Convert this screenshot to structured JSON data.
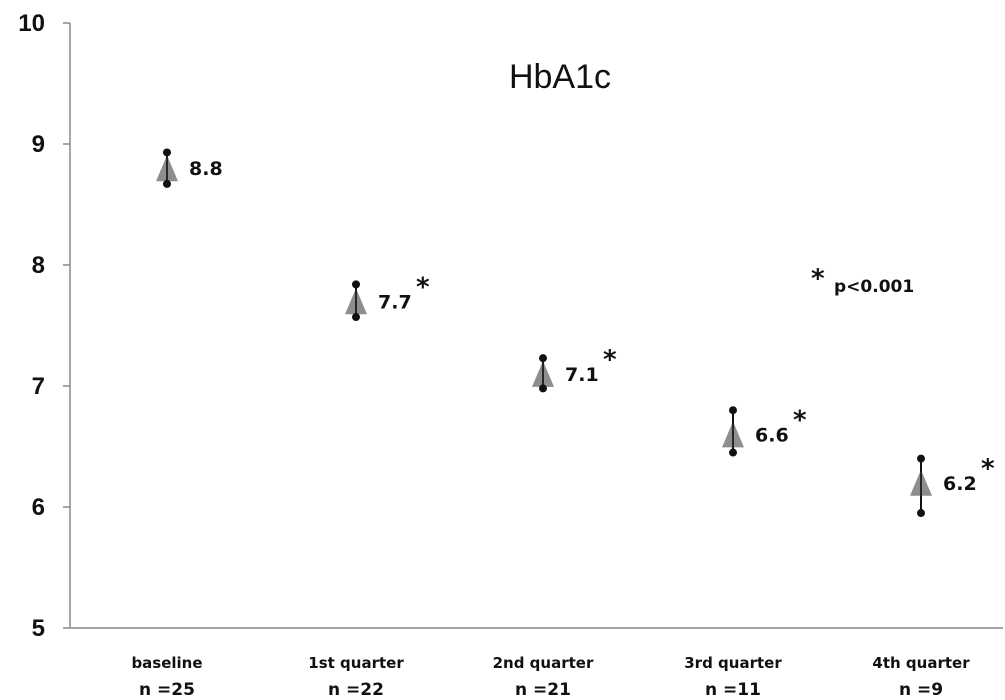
{
  "chart_data": {
    "type": "scatter",
    "title": "HbA1c",
    "xlabel": "",
    "ylabel": "",
    "ylim": [
      5,
      10
    ],
    "yticks": [
      5,
      6,
      7,
      8,
      9,
      10
    ],
    "grid": false,
    "categories": [
      "baseline",
      "1st quarter",
      "2nd quarter",
      "3rd quarter",
      "4th quarter"
    ],
    "n_labels": [
      "n =25",
      "n =22",
      "n =21",
      "n =11",
      "n =9"
    ],
    "values": [
      8.8,
      7.7,
      7.1,
      6.6,
      6.2
    ],
    "value_labels": [
      "8.8",
      "7.7",
      "7.1",
      "6.6",
      "6.2"
    ],
    "error_upper": [
      8.93,
      7.84,
      7.23,
      6.8,
      6.4
    ],
    "error_lower": [
      8.67,
      7.57,
      6.98,
      6.45,
      5.95
    ],
    "significant": [
      false,
      true,
      true,
      true,
      true
    ],
    "annotation": {
      "symbol": "*",
      "text": "p<0.001"
    },
    "marker_color": "#7a7a7a",
    "line_color": "#111111"
  }
}
